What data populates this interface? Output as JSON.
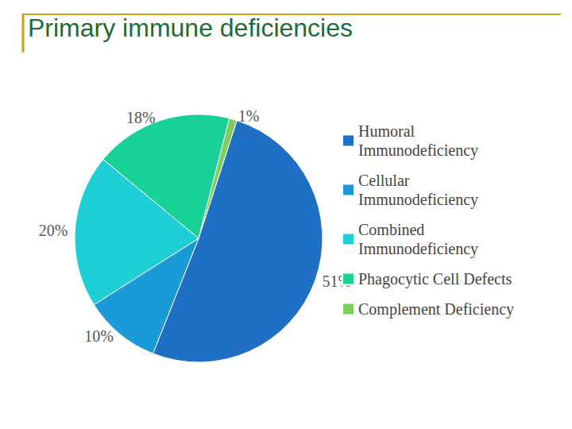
{
  "chart_data": {
    "type": "pie",
    "title": "Primary immune deficiencies",
    "categories": [
      "Humoral Immunodeficiency",
      "Cellular Immunodeficiency",
      "Combined Immunodeficiency",
      "Phagocytic Cell Defects",
      "Complement Deficiency"
    ],
    "values": [
      51,
      10,
      20,
      18,
      1
    ],
    "value_labels": [
      "51%",
      "10%",
      "20%",
      "18%",
      "1%"
    ],
    "colors": [
      "#1f6fc5",
      "#1a9ad6",
      "#1ecfd6",
      "#17d196",
      "#7ccf5c"
    ],
    "data_labels": true,
    "legend": "right"
  }
}
